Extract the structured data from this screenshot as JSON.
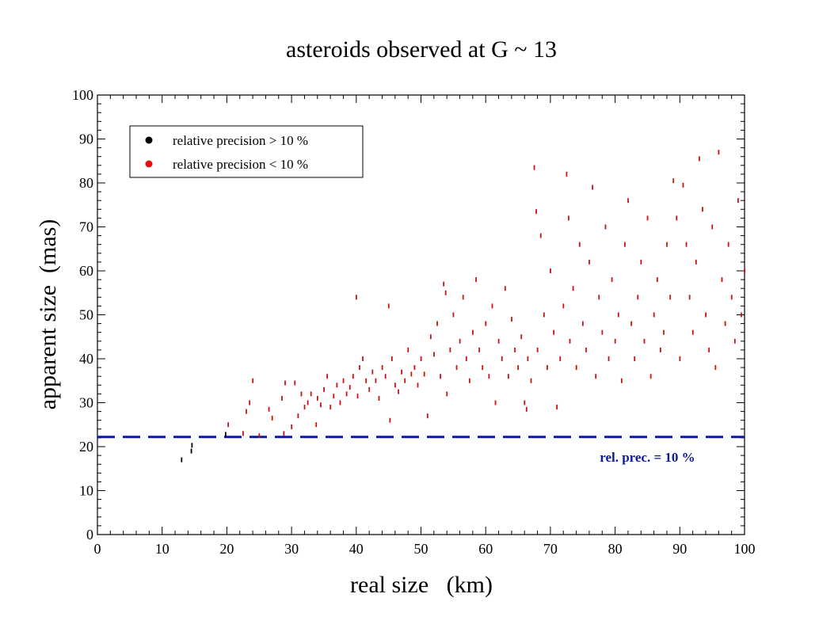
{
  "chart_data": {
    "type": "scatter",
    "title": "asteroids observed at G ~ 13",
    "xlabel": "real size   (km)",
    "ylabel": "apparent size  (mas)",
    "xlim": [
      0,
      100
    ],
    "ylim": [
      0,
      100
    ],
    "x_ticks": [
      "0",
      "10",
      "20",
      "30",
      "40",
      "50",
      "60",
      "70",
      "80",
      "90",
      "100"
    ],
    "y_ticks": [
      "0",
      "10",
      "20",
      "30",
      "40",
      "50",
      "60",
      "70",
      "80",
      "90",
      "100"
    ],
    "grid": false,
    "legend_position": "top-left",
    "series": [
      {
        "name": "relative precision > 10 %",
        "color": "#000000",
        "points": [
          [
            13.0,
            17.0
          ],
          [
            14.5,
            19.0
          ],
          [
            14.6,
            20.3
          ],
          [
            19.8,
            22.8
          ]
        ]
      },
      {
        "name": "relative precision < 10 %",
        "color": "#cc1111",
        "points": [
          [
            20.2,
            25.0
          ],
          [
            22.5,
            23.0
          ],
          [
            23.0,
            28.0
          ],
          [
            23.5,
            30.0
          ],
          [
            24.0,
            35.0
          ],
          [
            25.0,
            22.5
          ],
          [
            26.5,
            28.5
          ],
          [
            27.0,
            26.5
          ],
          [
            28.5,
            31.0
          ],
          [
            28.8,
            23.0
          ],
          [
            29.0,
            34.5
          ],
          [
            30.0,
            24.5
          ],
          [
            30.5,
            34.5
          ],
          [
            31.0,
            27.0
          ],
          [
            31.5,
            32.0
          ],
          [
            32.0,
            29.0
          ],
          [
            32.5,
            30.0
          ],
          [
            33.0,
            32.0
          ],
          [
            33.8,
            25.0
          ],
          [
            34.0,
            31.0
          ],
          [
            34.5,
            29.5
          ],
          [
            35.0,
            33.0
          ],
          [
            35.5,
            36.0
          ],
          [
            36.0,
            29.0
          ],
          [
            36.5,
            31.5
          ],
          [
            37.0,
            34.0
          ],
          [
            37.5,
            30.0
          ],
          [
            38.0,
            35.0
          ],
          [
            38.5,
            32.0
          ],
          [
            39.0,
            33.5
          ],
          [
            39.5,
            36.0
          ],
          [
            40.0,
            54.0
          ],
          [
            40.2,
            31.5
          ],
          [
            40.5,
            38.0
          ],
          [
            41.0,
            40.0
          ],
          [
            41.5,
            35.0
          ],
          [
            42.0,
            33.0
          ],
          [
            42.5,
            37.0
          ],
          [
            43.0,
            35.0
          ],
          [
            43.5,
            31.0
          ],
          [
            44.0,
            38.0
          ],
          [
            44.5,
            36.0
          ],
          [
            45.0,
            52.0
          ],
          [
            45.2,
            26.0
          ],
          [
            45.5,
            40.0
          ],
          [
            46.0,
            34.0
          ],
          [
            46.5,
            32.5
          ],
          [
            47.0,
            37.0
          ],
          [
            47.5,
            35.0
          ],
          [
            48.0,
            42.0
          ],
          [
            48.5,
            36.5
          ],
          [
            49.0,
            38.0
          ],
          [
            49.5,
            34.0
          ],
          [
            50.0,
            40.0
          ],
          [
            50.5,
            36.5
          ],
          [
            51.0,
            27.0
          ],
          [
            51.5,
            45.0
          ],
          [
            52.0,
            41.0
          ],
          [
            52.5,
            48.0
          ],
          [
            53.0,
            36.0
          ],
          [
            53.5,
            57.0
          ],
          [
            53.8,
            55.0
          ],
          [
            54.0,
            32.0
          ],
          [
            54.5,
            42.0
          ],
          [
            55.0,
            50.0
          ],
          [
            55.5,
            38.0
          ],
          [
            56.0,
            44.0
          ],
          [
            56.5,
            54.0
          ],
          [
            57.0,
            40.0
          ],
          [
            57.5,
            35.0
          ],
          [
            58.0,
            46.0
          ],
          [
            58.5,
            58.0
          ],
          [
            59.0,
            42.0
          ],
          [
            59.5,
            38.0
          ],
          [
            60.0,
            48.0
          ],
          [
            60.5,
            36.0
          ],
          [
            61.0,
            52.0
          ],
          [
            61.5,
            30.0
          ],
          [
            62.0,
            44.0
          ],
          [
            62.5,
            40.0
          ],
          [
            63.0,
            56.0
          ],
          [
            63.5,
            36.0
          ],
          [
            64.0,
            49.0
          ],
          [
            64.5,
            42.0
          ],
          [
            65.0,
            38.0
          ],
          [
            65.5,
            45.0
          ],
          [
            66.0,
            30.0
          ],
          [
            66.3,
            28.5
          ],
          [
            66.5,
            40.0
          ],
          [
            67.0,
            35.0
          ],
          [
            67.5,
            83.5
          ],
          [
            67.8,
            73.5
          ],
          [
            68.0,
            42.0
          ],
          [
            68.5,
            68.0
          ],
          [
            69.0,
            50.0
          ],
          [
            69.5,
            38.0
          ],
          [
            70.0,
            60.0
          ],
          [
            70.5,
            46.0
          ],
          [
            71.0,
            29.0
          ],
          [
            71.5,
            40.0
          ],
          [
            72.0,
            52.0
          ],
          [
            72.5,
            82.0
          ],
          [
            72.8,
            72.0
          ],
          [
            73.0,
            44.0
          ],
          [
            73.5,
            56.0
          ],
          [
            74.0,
            38.0
          ],
          [
            74.5,
            66.0
          ],
          [
            75.0,
            48.0
          ],
          [
            75.5,
            42.0
          ],
          [
            76.0,
            62.0
          ],
          [
            76.5,
            79.0
          ],
          [
            77.0,
            36.0
          ],
          [
            77.5,
            54.0
          ],
          [
            78.0,
            46.0
          ],
          [
            78.5,
            70.0
          ],
          [
            79.0,
            40.0
          ],
          [
            79.5,
            58.0
          ],
          [
            80.0,
            44.0
          ],
          [
            80.5,
            50.0
          ],
          [
            81.0,
            35.0
          ],
          [
            81.5,
            66.0
          ],
          [
            82.0,
            76.0
          ],
          [
            82.5,
            48.0
          ],
          [
            83.0,
            40.0
          ],
          [
            83.5,
            54.0
          ],
          [
            84.0,
            62.0
          ],
          [
            84.5,
            44.0
          ],
          [
            85.0,
            72.0
          ],
          [
            85.5,
            36.0
          ],
          [
            86.0,
            50.0
          ],
          [
            86.5,
            58.0
          ],
          [
            87.0,
            42.0
          ],
          [
            87.5,
            46.0
          ],
          [
            88.0,
            66.0
          ],
          [
            88.5,
            54.0
          ],
          [
            89.0,
            80.5
          ],
          [
            89.5,
            72.0
          ],
          [
            90.0,
            40.0
          ],
          [
            90.5,
            79.5
          ],
          [
            91.0,
            66.0
          ],
          [
            91.5,
            54.0
          ],
          [
            92.0,
            46.0
          ],
          [
            92.5,
            62.0
          ],
          [
            93.0,
            85.5
          ],
          [
            93.5,
            74.0
          ],
          [
            94.0,
            50.0
          ],
          [
            94.5,
            42.0
          ],
          [
            95.0,
            70.0
          ],
          [
            95.5,
            38.0
          ],
          [
            96.0,
            87.0
          ],
          [
            96.5,
            58.0
          ],
          [
            97.0,
            48.0
          ],
          [
            97.5,
            66.0
          ],
          [
            98.0,
            54.0
          ],
          [
            98.5,
            44.0
          ],
          [
            99.0,
            76.0
          ],
          [
            99.5,
            50.0
          ],
          [
            100.0,
            60.0
          ]
        ]
      }
    ],
    "annotations": [
      {
        "text": "rel. prec. = 10 %",
        "type": "horizontal-dashed-line",
        "y": 22.2,
        "color": "#0a1aa0",
        "x_text": 85
      }
    ]
  }
}
